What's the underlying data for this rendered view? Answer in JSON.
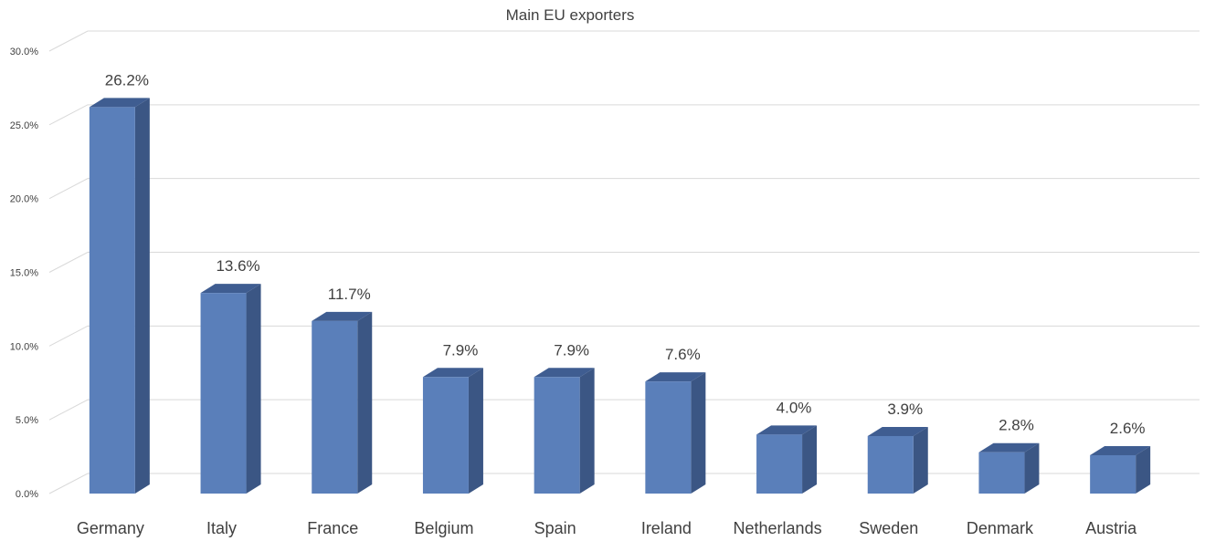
{
  "chart_data": {
    "type": "bar",
    "title": "Main EU exporters",
    "xlabel": "",
    "ylabel": "",
    "categories": [
      "Germany",
      "Italy",
      "France",
      "Belgium",
      "Spain",
      "Ireland",
      "Netherlands",
      "Sweden",
      "Denmark",
      "Austria"
    ],
    "values": [
      26.2,
      13.6,
      11.7,
      7.9,
      7.9,
      7.6,
      4.0,
      3.9,
      2.8,
      2.6
    ],
    "data_labels": [
      "26.2%",
      "13.6%",
      "11.7%",
      "7.9%",
      "7.9%",
      "7.6%",
      "4.0%",
      "3.9%",
      "2.8%",
      "2.6%"
    ],
    "yticks": [
      0,
      5,
      10,
      15,
      20,
      25,
      30
    ],
    "ytick_labels": [
      "0.0%",
      "5.0%",
      "10.0%",
      "15.0%",
      "20.0%",
      "25.0%",
      "30.0%"
    ],
    "ylim": [
      0,
      30
    ],
    "grid": true,
    "legend": "none",
    "style": "3d-column",
    "colors": {
      "bar_front": "#5a7fba",
      "bar_side": "#3b5684",
      "bar_top": "#3f5d91",
      "grid": "#d9d9d9",
      "text": "#404040"
    }
  }
}
